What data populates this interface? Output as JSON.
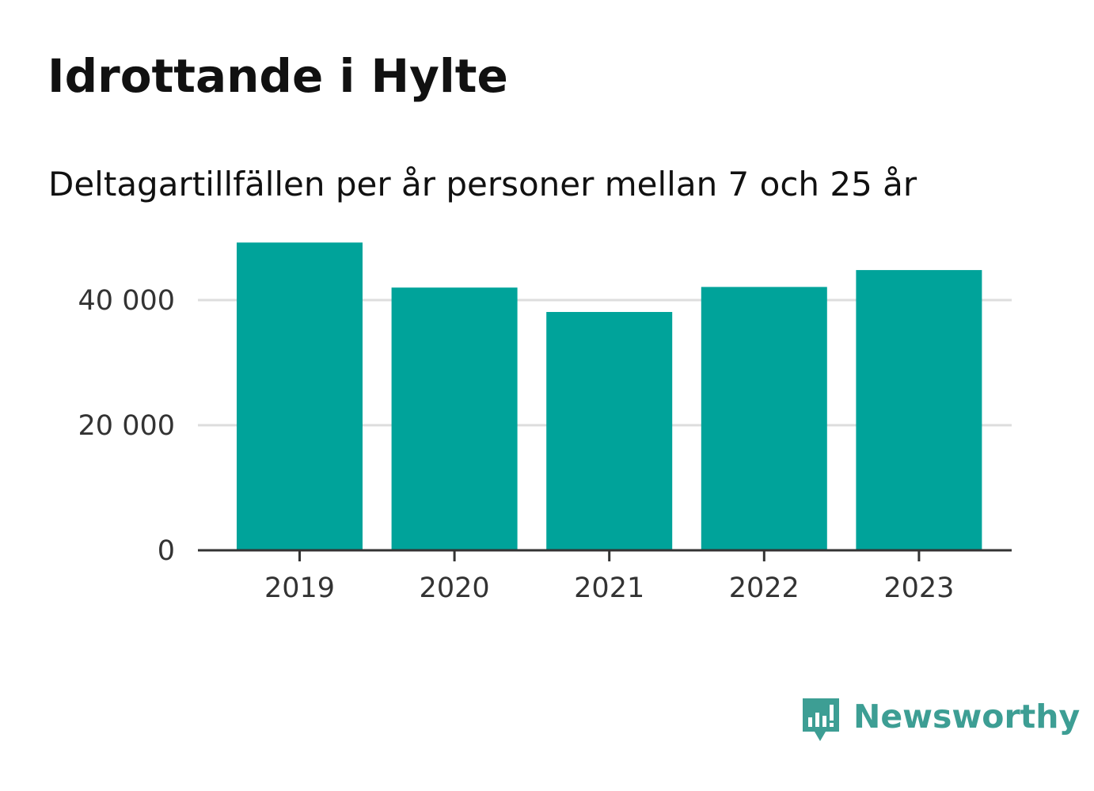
{
  "header": {
    "title": "Idrottande i Hylte",
    "subtitle": "Deltagartillfällen per år personer mellan 7 och 25 år"
  },
  "brand": {
    "name": "Newsworthy",
    "icon": "newsworthy-logo-icon",
    "color": "#3d9e94"
  },
  "colors": {
    "bar": "#00a39a",
    "grid": "#dddddd",
    "axis": "#333333"
  },
  "chart_data": {
    "type": "bar",
    "categories": [
      "2019",
      "2020",
      "2021",
      "2022",
      "2023"
    ],
    "values": [
      49200,
      42000,
      38100,
      42100,
      44800
    ],
    "ylim": [
      0,
      50000
    ],
    "yticks": [
      0,
      20000,
      40000
    ],
    "ytick_labels": [
      "0",
      "20 000",
      "40 000"
    ],
    "grid": true,
    "legend": "none"
  }
}
